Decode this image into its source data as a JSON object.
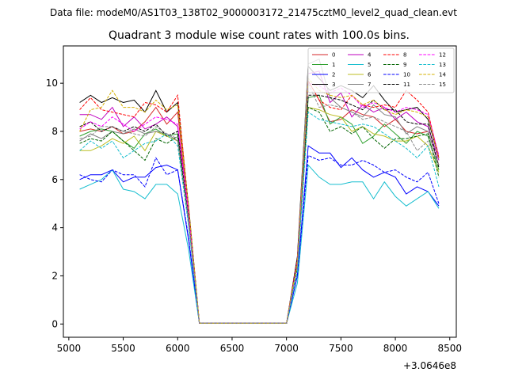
{
  "suptitle": "Data file: modeM0/AS1T03_138T02_9000003172_21475cztM0_level2_quad_clean.evt",
  "title": "Quadrant 3 module wise count rates with 100.0s bins.",
  "chart_data": {
    "type": "line",
    "title": "Quadrant 3 module wise count rates with 100.0s bins.",
    "xlabel": "",
    "ylabel": "",
    "x_offset_label": "+3.0646e8",
    "xlim": [
      4950,
      8560
    ],
    "ylim": [
      -0.55,
      11.55
    ],
    "xticks": [
      5000,
      5500,
      6000,
      6500,
      7000,
      7500,
      8000,
      8500
    ],
    "yticks": [
      0,
      2,
      4,
      6,
      8,
      10
    ],
    "grid": false,
    "legend": {
      "placement": "top-right",
      "columns": 4
    },
    "x": [
      5100,
      5200,
      5300,
      5400,
      5500,
      5600,
      5700,
      5800,
      5900,
      6000,
      6100,
      6200,
      6300,
      6400,
      6500,
      6600,
      6700,
      6800,
      6900,
      7000,
      7100,
      7200,
      7300,
      7400,
      7500,
      7600,
      7700,
      7800,
      7900,
      8000,
      8100,
      8200,
      8300,
      8400
    ],
    "series": [
      {
        "name": "0",
        "color": "#d62728",
        "dash": "solid",
        "values": [
          8.0,
          8.1,
          8.0,
          8.2,
          7.9,
          8.0,
          8.4,
          9.0,
          8.3,
          8.8,
          4.5,
          0.03,
          0.03,
          0.03,
          0.03,
          0.03,
          0.03,
          0.03,
          0.03,
          0.03,
          2.6,
          10.1,
          9.3,
          8.4,
          8.5,
          8.9,
          8.7,
          8.6,
          8.2,
          8.5,
          8.0,
          7.9,
          8.0,
          6.6
        ]
      },
      {
        "name": "1",
        "color": "#2ca02c",
        "dash": "solid",
        "values": [
          7.8,
          8.0,
          8.1,
          8.0,
          7.6,
          7.3,
          7.9,
          8.1,
          7.8,
          7.9,
          4.2,
          0.03,
          0.03,
          0.03,
          0.03,
          0.03,
          0.03,
          0.03,
          0.03,
          0.03,
          2.4,
          9.4,
          9.5,
          8.3,
          8.6,
          8.3,
          7.5,
          7.8,
          8.3,
          7.9,
          7.5,
          8.0,
          7.8,
          6.4
        ]
      },
      {
        "name": "2",
        "color": "#0000ff",
        "dash": "solid",
        "values": [
          6.0,
          6.2,
          6.2,
          6.4,
          5.9,
          6.1,
          6.1,
          6.5,
          6.6,
          6.4,
          3.5,
          0.03,
          0.03,
          0.03,
          0.03,
          0.03,
          0.03,
          0.03,
          0.03,
          0.03,
          2.0,
          7.4,
          7.1,
          7.1,
          6.5,
          6.9,
          6.4,
          6.1,
          6.3,
          6.1,
          5.4,
          5.7,
          5.5,
          4.9
        ]
      },
      {
        "name": "3",
        "color": "#000000",
        "dash": "solid",
        "values": [
          9.2,
          9.5,
          9.2,
          9.4,
          9.2,
          9.3,
          8.8,
          9.7,
          8.8,
          9.2,
          4.9,
          0.03,
          0.03,
          0.03,
          0.03,
          0.03,
          0.03,
          0.03,
          0.03,
          0.03,
          2.8,
          10.7,
          10.2,
          9.7,
          9.9,
          9.7,
          9.4,
          9.9,
          9.3,
          8.8,
          8.9,
          9.0,
          8.5,
          6.9
        ]
      },
      {
        "name": "4",
        "color": "#bf00bf",
        "dash": "solid",
        "values": [
          8.7,
          8.7,
          8.5,
          9.0,
          8.2,
          8.6,
          8.1,
          8.3,
          8.6,
          8.2,
          4.6,
          0.03,
          0.03,
          0.03,
          0.03,
          0.03,
          0.03,
          0.03,
          0.03,
          0.03,
          2.6,
          10.4,
          10.5,
          9.2,
          9.6,
          8.6,
          9.1,
          8.8,
          9.0,
          8.5,
          8.8,
          8.4,
          8.2,
          6.8
        ]
      },
      {
        "name": "5",
        "color": "#17becf",
        "dash": "solid",
        "values": [
          5.6,
          5.8,
          6.0,
          6.4,
          5.6,
          5.5,
          5.2,
          5.8,
          5.8,
          5.4,
          3.1,
          0.03,
          0.03,
          0.03,
          0.03,
          0.03,
          0.03,
          0.03,
          0.03,
          0.03,
          1.7,
          6.6,
          6.1,
          5.8,
          5.8,
          5.9,
          5.9,
          5.2,
          5.9,
          5.3,
          4.9,
          5.2,
          5.5,
          4.8
        ]
      },
      {
        "name": "6",
        "color": "#bcbd22",
        "dash": "solid",
        "values": [
          7.2,
          7.2,
          7.4,
          7.7,
          7.5,
          7.8,
          7.2,
          8.0,
          7.8,
          7.6,
          4.3,
          0.03,
          0.03,
          0.03,
          0.03,
          0.03,
          0.03,
          0.03,
          0.03,
          0.03,
          2.4,
          9.0,
          8.9,
          8.7,
          8.6,
          8.0,
          8.2,
          7.9,
          7.8,
          7.6,
          7.6,
          7.8,
          7.4,
          6.3
        ]
      },
      {
        "name": "7",
        "color": "#7f7f7f",
        "dash": "solid",
        "values": [
          7.6,
          7.9,
          7.7,
          8.0,
          7.9,
          8.1,
          7.9,
          8.0,
          7.9,
          7.6,
          4.3,
          0.03,
          0.03,
          0.03,
          0.03,
          0.03,
          0.03,
          0.03,
          0.03,
          0.03,
          2.5,
          10.8,
          11.0,
          9.4,
          9.0,
          8.8,
          8.6,
          9.1,
          8.7,
          8.6,
          7.9,
          8.2,
          8.0,
          6.6
        ]
      },
      {
        "name": "8",
        "color": "#ff0000",
        "dash": "dashed",
        "values": [
          8.9,
          9.4,
          8.9,
          8.8,
          8.7,
          8.6,
          9.2,
          9.1,
          8.8,
          9.5,
          4.8,
          0.03,
          0.03,
          0.03,
          0.03,
          0.03,
          0.03,
          0.03,
          0.03,
          0.03,
          2.7,
          10.1,
          9.3,
          9.0,
          8.9,
          9.5,
          9.1,
          9.0,
          9.1,
          9.0,
          9.7,
          9.3,
          8.8,
          6.9
        ]
      },
      {
        "name": "9",
        "color": "#006400",
        "dash": "dashed",
        "values": [
          7.5,
          7.7,
          7.6,
          8.0,
          7.6,
          7.2,
          6.8,
          7.7,
          7.5,
          7.8,
          4.2,
          0.03,
          0.03,
          0.03,
          0.03,
          0.03,
          0.03,
          0.03,
          0.03,
          0.03,
          2.3,
          9.0,
          8.8,
          8.0,
          8.2,
          7.9,
          8.2,
          7.7,
          7.3,
          7.7,
          7.7,
          7.8,
          7.9,
          6.1
        ]
      },
      {
        "name": "10",
        "color": "#0000ff",
        "dash": "dashed",
        "values": [
          6.2,
          6.0,
          5.9,
          6.4,
          6.2,
          6.2,
          5.7,
          6.9,
          6.2,
          6.4,
          3.6,
          0.03,
          0.03,
          0.03,
          0.03,
          0.03,
          0.03,
          0.03,
          0.03,
          0.03,
          2.0,
          7.0,
          6.8,
          6.9,
          6.6,
          6.6,
          6.8,
          6.6,
          6.3,
          6.4,
          6.1,
          5.9,
          6.3,
          5.0
        ]
      },
      {
        "name": "11",
        "color": "#000000",
        "dash": "dashed",
        "values": [
          8.2,
          8.4,
          8.0,
          8.2,
          8.0,
          8.2,
          8.0,
          8.3,
          7.8,
          8.0,
          4.4,
          0.03,
          0.03,
          0.03,
          0.03,
          0.03,
          0.03,
          0.03,
          0.03,
          0.03,
          2.5,
          9.5,
          9.5,
          9.4,
          9.3,
          9.1,
          8.9,
          9.3,
          8.9,
          8.9,
          8.4,
          8.3,
          8.3,
          6.5
        ]
      },
      {
        "name": "12",
        "color": "#ff00ff",
        "dash": "dashed",
        "values": [
          8.1,
          8.4,
          8.2,
          8.6,
          8.3,
          8.0,
          8.3,
          8.6,
          8.5,
          8.3,
          4.6,
          0.03,
          0.03,
          0.03,
          0.03,
          0.03,
          0.03,
          0.03,
          0.03,
          0.03,
          2.6,
          10.0,
          9.9,
          9.6,
          9.8,
          9.5,
          9.0,
          9.2,
          9.0,
          8.8,
          9.0,
          8.9,
          8.7,
          7.0
        ]
      },
      {
        "name": "13",
        "color": "#17becf",
        "dash": "dashed",
        "values": [
          7.2,
          7.6,
          7.3,
          7.6,
          6.9,
          7.2,
          7.5,
          7.6,
          7.9,
          7.4,
          4.1,
          0.03,
          0.03,
          0.03,
          0.03,
          0.03,
          0.03,
          0.03,
          0.03,
          0.03,
          2.2,
          8.8,
          8.5,
          8.4,
          8.3,
          8.2,
          8.3,
          8.2,
          7.9,
          7.6,
          7.3,
          6.9,
          7.4,
          5.7
        ]
      },
      {
        "name": "14",
        "color": "#d4b000",
        "dash": "dashed",
        "values": [
          8.0,
          8.9,
          9.0,
          9.7,
          9.0,
          9.0,
          8.8,
          9.3,
          8.9,
          9.1,
          4.9,
          0.03,
          0.03,
          0.03,
          0.03,
          0.03,
          0.03,
          0.03,
          0.03,
          0.03,
          2.6,
          10.2,
          9.7,
          9.5,
          9.4,
          9.5,
          9.1,
          9.3,
          8.9,
          8.7,
          8.9,
          8.8,
          8.6,
          6.9
        ]
      },
      {
        "name": "15",
        "color": "#8c8c8c",
        "dash": "dashed",
        "values": [
          7.7,
          7.8,
          8.2,
          8.2,
          8.0,
          7.9,
          7.8,
          8.2,
          7.9,
          7.7,
          4.3,
          0.03,
          0.03,
          0.03,
          0.03,
          0.03,
          0.03,
          0.03,
          0.03,
          0.03,
          2.4,
          10.0,
          9.0,
          9.1,
          9.0,
          8.8,
          8.5,
          8.6,
          8.4,
          8.2,
          8.0,
          7.2,
          7.6,
          6.6
        ]
      }
    ]
  }
}
